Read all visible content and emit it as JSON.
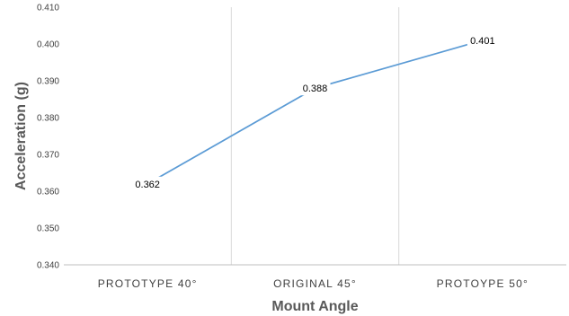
{
  "chart_data": {
    "type": "line",
    "title": "",
    "xlabel": "Mount Angle",
    "ylabel": "Acceleration (g)",
    "categories": [
      "PROTOTYPE 40°",
      "ORIGINAL 45°",
      "PROTOYPE 50°"
    ],
    "series": [
      {
        "values": [
          0.362,
          0.388,
          0.401
        ],
        "data_labels": [
          "0.362",
          "0.388",
          "0.401"
        ],
        "color": "#5b9bd5"
      }
    ],
    "ylim": [
      0.34,
      0.41
    ],
    "yticks": [
      "0.340",
      "0.350",
      "0.360",
      "0.370",
      "0.380",
      "0.390",
      "0.400",
      "0.410"
    ],
    "vertical_gridlines": true,
    "horizontal_gridlines": false,
    "legend": "none"
  }
}
